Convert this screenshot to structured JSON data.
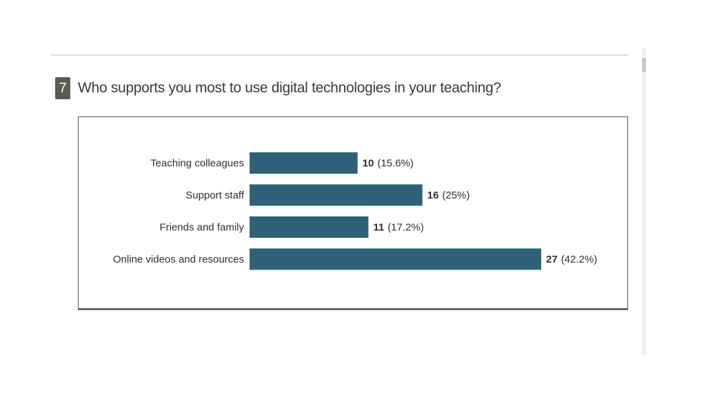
{
  "question": {
    "number": "7",
    "text": "Who supports you most to use digital technologies in your teaching?"
  },
  "colors": {
    "bar": "#2e6178",
    "badge": "#5b5b55"
  },
  "chart_data": {
    "type": "bar",
    "orientation": "horizontal",
    "categories": [
      "Teaching colleagues",
      "Support staff",
      "Friends and family",
      "Online videos and resources"
    ],
    "values": [
      10,
      16,
      11,
      27
    ],
    "percent_labels": [
      "(15.6%)",
      "(25%)",
      "(17.2%)",
      "(42.2%)"
    ],
    "title": "",
    "xlabel": "",
    "ylabel": "",
    "xlim": [
      0,
      27
    ],
    "grid": false,
    "legend": "none"
  }
}
